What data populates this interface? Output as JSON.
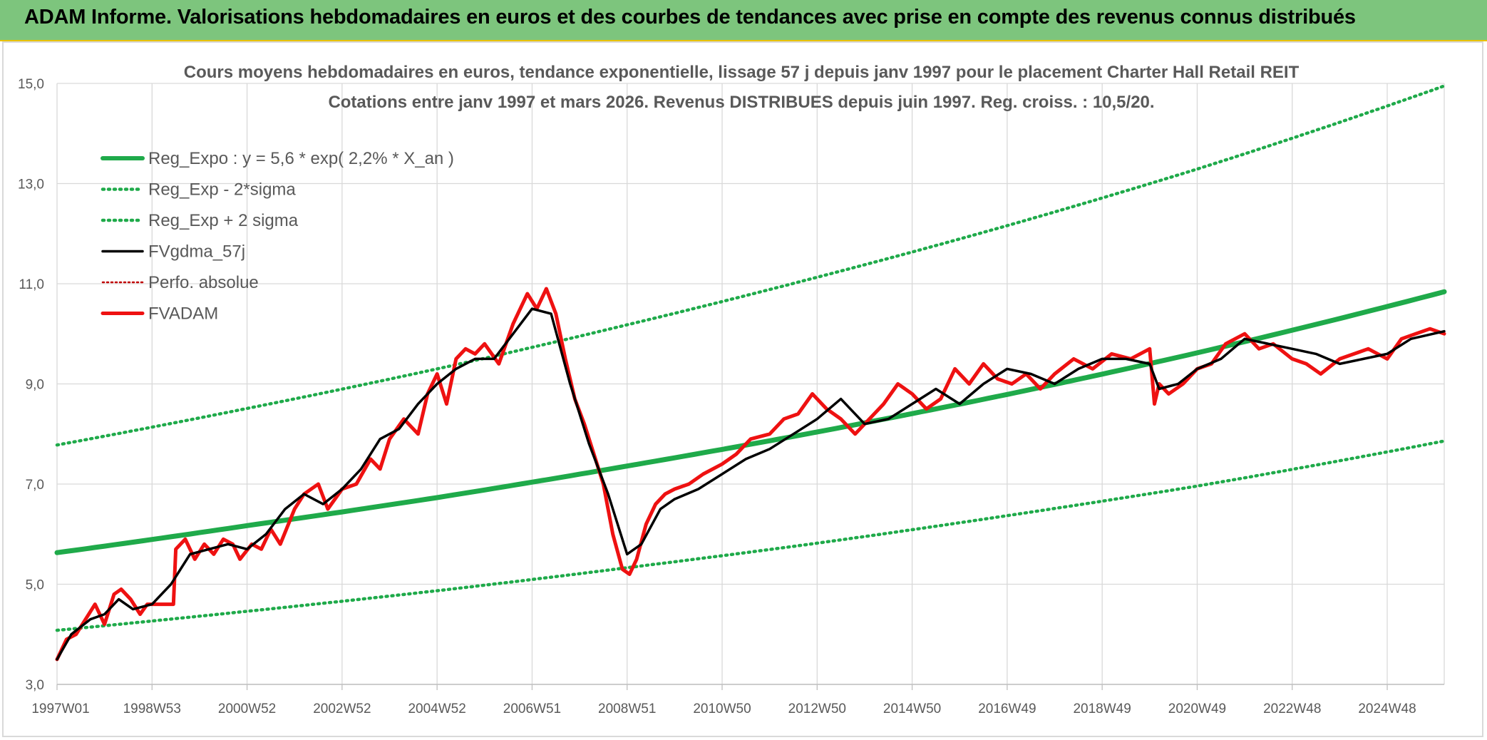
{
  "banner": {
    "title": "ADAM Informe. Valorisations hebdomadaires en euros et des courbes de tendances avec prise en compte des revenus connus distribués"
  },
  "colors": {
    "banner_bg": "#7dc57d",
    "reg_expo": "#1faa4a",
    "fvgdma": "#000000",
    "fvadam": "#ee1111",
    "perfo": "#c00000",
    "grid": "#d9d9d9"
  },
  "chart_data": {
    "type": "line",
    "title_line1": "Cours moyens hebdomadaires en euros, tendance exponentielle, lissage 57 j depuis janv 1997 pour le placement Charter Hall Retail REIT",
    "title_line2": "Cotations entre janv 1997 et mars 2026. Revenus DISTRIBUES depuis juin 1997. Reg. croiss. : 10,5/20.",
    "x_range": [
      1997.0,
      2026.2
    ],
    "ylim": [
      3.0,
      15.0
    ],
    "y_ticks": [
      "3,0",
      "5,0",
      "7,0",
      "9,0",
      "11,0",
      "13,0",
      "15,0"
    ],
    "x_ticks": [
      {
        "label": "1997W01",
        "x": 1997.0
      },
      {
        "label": "1998W53",
        "x": 1999.0
      },
      {
        "label": "2000W52",
        "x": 2001.0
      },
      {
        "label": "2002W52",
        "x": 2003.0
      },
      {
        "label": "2004W52",
        "x": 2005.0
      },
      {
        "label": "2006W51",
        "x": 2007.0
      },
      {
        "label": "2008W51",
        "x": 2009.0
      },
      {
        "label": "2010W50",
        "x": 2011.0
      },
      {
        "label": "2012W50",
        "x": 2013.0
      },
      {
        "label": "2014W50",
        "x": 2015.0
      },
      {
        "label": "2016W49",
        "x": 2017.0
      },
      {
        "label": "2018W49",
        "x": 2019.0
      },
      {
        "label": "2020W49",
        "x": 2021.0
      },
      {
        "label": "2022W48",
        "x": 2023.0
      },
      {
        "label": "2024W48",
        "x": 2025.0
      }
    ],
    "legend": [
      {
        "name": "Reg_Expo : y = 5,6 * exp( 2,2% *  X_an )",
        "style": "solid-thick",
        "color": "#1faa4a"
      },
      {
        "name": "Reg_Exp - 2*sigma",
        "style": "dotted",
        "color": "#1faa4a"
      },
      {
        "name": "Reg_Exp + 2 sigma",
        "style": "dotted",
        "color": "#1faa4a"
      },
      {
        "name": "FVgdma_57j",
        "style": "solid",
        "color": "#000000"
      },
      {
        "name": "Perfo. absolue",
        "style": "dotted-thin",
        "color": "#c00000"
      },
      {
        "name": "FVADAM",
        "style": "solid-medium",
        "color": "#ee1111"
      }
    ],
    "series": [
      {
        "name": "Reg_Expo : y = 5,6 * exp( 2,2% *  X_an )",
        "x": [
          1997.0,
          2001.0,
          2005.0,
          2009.0,
          2013.0,
          2017.0,
          2021.0,
          2026.2
        ],
        "values": [
          5.63,
          6.17,
          6.73,
          7.36,
          8.04,
          8.79,
          9.62,
          10.84
        ]
      },
      {
        "name": "Reg_Exp - 2*sigma",
        "x": [
          1997.0,
          2001.0,
          2005.0,
          2009.0,
          2013.0,
          2017.0,
          2021.0,
          2026.2
        ],
        "values": [
          4.08,
          4.46,
          4.87,
          5.33,
          5.82,
          6.37,
          6.96,
          7.86
        ]
      },
      {
        "name": "Reg_Exp + 2 sigma",
        "x": [
          1997.0,
          2001.0,
          2005.0,
          2009.0,
          2013.0,
          2017.0,
          2021.0,
          2026.2
        ],
        "values": [
          7.78,
          8.51,
          9.3,
          10.18,
          11.13,
          12.16,
          13.29,
          14.95
        ]
      },
      {
        "name": "FVgdma_57j",
        "x": [
          1997.0,
          1997.3,
          1997.7,
          1998.0,
          1998.3,
          1998.6,
          1999.0,
          1999.4,
          1999.8,
          2000.2,
          2000.6,
          2001.0,
          2001.4,
          2001.8,
          2002.2,
          2002.6,
          2003.0,
          2003.4,
          2003.8,
          2004.2,
          2004.6,
          2005.0,
          2005.4,
          2005.8,
          2006.2,
          2006.6,
          2007.0,
          2007.4,
          2007.8,
          2008.2,
          2008.6,
          2009.0,
          2009.3,
          2009.7,
          2010.0,
          2010.5,
          2011.0,
          2011.5,
          2012.0,
          2012.5,
          2013.0,
          2013.5,
          2014.0,
          2014.5,
          2015.0,
          2015.5,
          2016.0,
          2016.5,
          2017.0,
          2017.5,
          2018.0,
          2018.5,
          2019.0,
          2019.5,
          2020.0,
          2020.2,
          2020.6,
          2021.0,
          2021.5,
          2022.0,
          2022.5,
          2023.0,
          2023.5,
          2024.0,
          2024.5,
          2025.0,
          2025.5,
          2026.2
        ],
        "values": [
          3.5,
          4.0,
          4.3,
          4.4,
          4.7,
          4.5,
          4.6,
          5.0,
          5.6,
          5.7,
          5.8,
          5.7,
          6.0,
          6.5,
          6.8,
          6.6,
          6.9,
          7.3,
          7.9,
          8.1,
          8.6,
          9.0,
          9.3,
          9.5,
          9.5,
          10.0,
          10.5,
          10.4,
          9.0,
          7.8,
          6.8,
          5.6,
          5.8,
          6.5,
          6.7,
          6.9,
          7.2,
          7.5,
          7.7,
          8.0,
          8.3,
          8.7,
          8.2,
          8.3,
          8.6,
          8.9,
          8.6,
          9.0,
          9.3,
          9.2,
          9.0,
          9.3,
          9.5,
          9.5,
          9.4,
          8.9,
          9.0,
          9.3,
          9.5,
          9.9,
          9.8,
          9.7,
          9.6,
          9.4,
          9.5,
          9.6,
          9.9,
          10.05
        ]
      },
      {
        "name": "FVADAM",
        "x": [
          1997.0,
          1997.2,
          1997.4,
          1997.6,
          1997.8,
          1998.0,
          1998.2,
          1998.35,
          1998.55,
          1998.75,
          1998.9,
          1999.0,
          1999.2,
          1999.45,
          1999.5,
          1999.7,
          1999.9,
          2000.1,
          2000.3,
          2000.5,
          2000.7,
          2000.85,
          2001.1,
          2001.3,
          2001.5,
          2001.7,
          2002.0,
          2002.2,
          2002.5,
          2002.7,
          2003.0,
          2003.3,
          2003.6,
          2003.8,
          2004.0,
          2004.3,
          2004.6,
          2004.8,
          2005.0,
          2005.2,
          2005.4,
          2005.6,
          2005.8,
          2006.0,
          2006.3,
          2006.6,
          2006.9,
          2007.1,
          2007.3,
          2007.5,
          2007.7,
          2007.9,
          2008.1,
          2008.3,
          2008.5,
          2008.7,
          2008.9,
          2009.05,
          2009.2,
          2009.4,
          2009.6,
          2009.8,
          2010.0,
          2010.3,
          2010.6,
          2011.0,
          2011.3,
          2011.6,
          2012.0,
          2012.3,
          2012.6,
          2012.9,
          2013.2,
          2013.5,
          2013.8,
          2014.1,
          2014.4,
          2014.7,
          2015.0,
          2015.3,
          2015.6,
          2015.9,
          2016.2,
          2016.5,
          2016.8,
          2017.1,
          2017.4,
          2017.7,
          2018.0,
          2018.4,
          2018.8,
          2019.2,
          2019.6,
          2020.0,
          2020.1,
          2020.2,
          2020.4,
          2020.7,
          2021.0,
          2021.3,
          2021.6,
          2022.0,
          2022.3,
          2022.6,
          2023.0,
          2023.3,
          2023.6,
          2024.0,
          2024.3,
          2024.6,
          2025.0,
          2025.3,
          2025.6,
          2025.9,
          2026.2
        ],
        "values": [
          3.5,
          3.9,
          4.0,
          4.3,
          4.6,
          4.2,
          4.8,
          4.9,
          4.7,
          4.4,
          4.6,
          4.6,
          4.6,
          4.6,
          5.7,
          5.9,
          5.5,
          5.8,
          5.6,
          5.9,
          5.8,
          5.5,
          5.8,
          5.7,
          6.1,
          5.8,
          6.5,
          6.8,
          7.0,
          6.5,
          6.9,
          7.0,
          7.5,
          7.3,
          7.9,
          8.3,
          8.0,
          8.8,
          9.2,
          8.6,
          9.5,
          9.7,
          9.6,
          9.8,
          9.4,
          10.2,
          10.8,
          10.5,
          10.9,
          10.4,
          9.5,
          8.7,
          8.2,
          7.6,
          7.0,
          6.0,
          5.3,
          5.2,
          5.5,
          6.2,
          6.6,
          6.8,
          6.9,
          7.0,
          7.2,
          7.4,
          7.6,
          7.9,
          8.0,
          8.3,
          8.4,
          8.8,
          8.5,
          8.3,
          8.0,
          8.3,
          8.6,
          9.0,
          8.8,
          8.5,
          8.7,
          9.3,
          9.0,
          9.4,
          9.1,
          9.0,
          9.2,
          8.9,
          9.2,
          9.5,
          9.3,
          9.6,
          9.5,
          9.7,
          8.6,
          9.0,
          8.8,
          9.0,
          9.3,
          9.4,
          9.8,
          10.0,
          9.7,
          9.8,
          9.5,
          9.4,
          9.2,
          9.5,
          9.6,
          9.7,
          9.5,
          9.9,
          10.0,
          10.1,
          10.0
        ]
      }
    ]
  }
}
